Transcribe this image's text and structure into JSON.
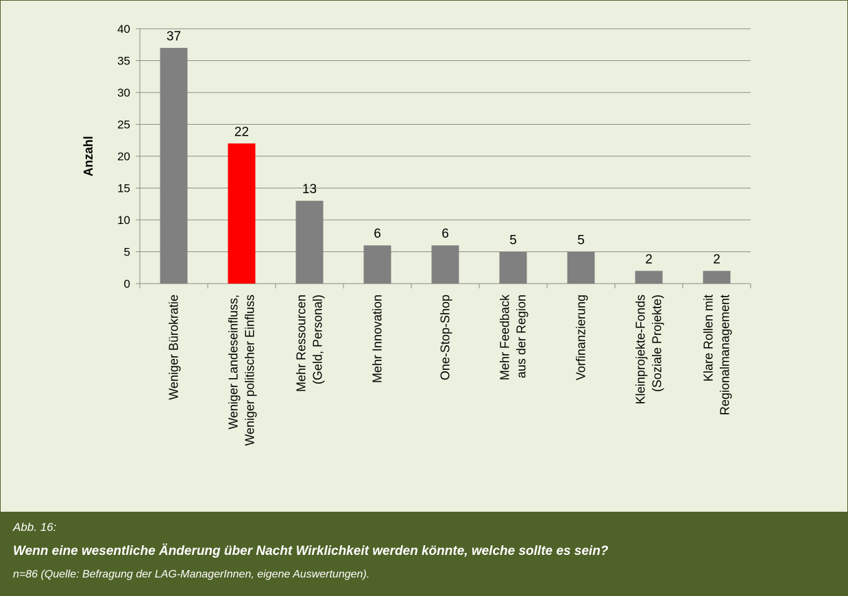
{
  "chart_data": {
    "type": "bar",
    "ylabel": "Anzahl",
    "xlabel": "",
    "ylim": [
      0,
      40
    ],
    "yticks": [
      0,
      5,
      10,
      15,
      20,
      25,
      30,
      35,
      40
    ],
    "grid": true,
    "categories": [
      [
        "Weniger Bürokratie"
      ],
      [
        "Weniger Landeseinfluss,",
        "Weniger politischer Einfluss"
      ],
      [
        "Mehr Ressourcen",
        "(Geld, Personal)"
      ],
      [
        "Mehr Innovation"
      ],
      [
        "One-Stop-Shop"
      ],
      [
        "Mehr Feedback",
        "aus der Region"
      ],
      [
        "Vorfinanzierung"
      ],
      [
        "Kleinprojekte-Fonds",
        "(Soziale Projekte)"
      ],
      [
        "Klare Rollen mit",
        "Regionalmanagement"
      ]
    ],
    "values": [
      37,
      22,
      13,
      6,
      6,
      5,
      5,
      2,
      2
    ],
    "bar_colors": [
      "#808080",
      "#ff0000",
      "#808080",
      "#808080",
      "#808080",
      "#808080",
      "#808080",
      "#808080",
      "#808080"
    ]
  },
  "caption": {
    "label": "Abb.  16:",
    "question": "Wenn eine wesentliche Änderung über Nacht Wirklichkeit werden könnte, welche sollte es sein?",
    "source": "n=86 (Quelle: Befragung der LAG-ManagerInnen, eigene Auswertungen)."
  },
  "colors": {
    "background": "#ebf1de",
    "caption_background": "#4f6228",
    "gridline": "#8c8c8c"
  }
}
